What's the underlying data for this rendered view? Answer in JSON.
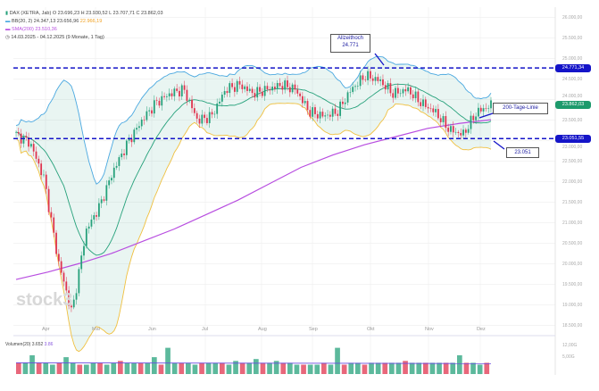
{
  "header": {
    "instrument": "DAX (XETRA, Jab) O 23.696,23 H 23.930,52 L 23.707,71 C 23.862,03",
    "bb": "BB(20, 2) 24.347,13 23.656,96",
    "bb_lower": "22.966,19",
    "sma": "SMA(200) 23.510,36",
    "range": "14.03.2025 - 04.12.2025 (9 Monate, 1 Tag)"
  },
  "volume_label": "Volumen(20) 3.652",
  "volume_value": "3.86",
  "watermark": "stock3",
  "annotations": {
    "ath_title": "Allzeithoch",
    "ath_value": "24.771",
    "sma_label": "200-Tage-Linie",
    "support_value": "23.051"
  },
  "price_tags": {
    "ath": "24.771,34",
    "last": "23.862,03",
    "support": "23.051,55"
  },
  "colors": {
    "up": "#26a17b",
    "down": "#e0344f",
    "bb_upper": "#4aa8e0",
    "bb_mid": "#26a17b",
    "bb_lower": "#f0c040",
    "sma": "#b84ee0",
    "hline": "#1414c8"
  },
  "chart_data": {
    "type": "candlestick",
    "y_ticks": [
      "26.000,00",
      "25.500,00",
      "25.000,00",
      "24.500,00",
      "24.000,00",
      "23.500,00",
      "23.000,00",
      "22.500,00",
      "22.000,00",
      "21.500,00",
      "21.000,00",
      "20.500,00",
      "20.000,00",
      "19.500,00",
      "19.000,00",
      "18.500,00"
    ],
    "y_tick_values": [
      26000,
      25500,
      25000,
      24500,
      24000,
      23500,
      23000,
      22500,
      22000,
      21500,
      21000,
      20500,
      20000,
      19500,
      19000,
      18500
    ],
    "x_ticks": [
      "Apr",
      "Mai",
      "Jun",
      "Jul",
      "Aug",
      "Sep",
      "Okt",
      "Nov",
      "Dez"
    ],
    "close_path": [
      23150,
      22950,
      22080,
      20100,
      18800,
      20800,
      21420,
      22300,
      22950,
      23490,
      23920,
      24140,
      24250,
      23490,
      23600,
      24250,
      24360,
      24150,
      24250,
      24360,
      24250,
      23700,
      23600,
      23700,
      24250,
      24580,
      24470,
      24140,
      24250,
      23920,
      23700,
      23270,
      23150,
      23700,
      23860
    ],
    "sma200_path": [
      19620,
      19800,
      20010,
      20250,
      20550,
      20850,
      21200,
      21550,
      21950,
      22350,
      22650,
      22900,
      23100,
      23300,
      23420,
      23510
    ],
    "hlines": [
      24771,
      23051
    ],
    "volume_ticks": [
      "12,00G",
      "5,00G"
    ],
    "volume": [
      6,
      6,
      10,
      6,
      6,
      5,
      6,
      9,
      6,
      5,
      5,
      6,
      6,
      5,
      6,
      7,
      6,
      6,
      6,
      6,
      9,
      5,
      14,
      6,
      6,
      6,
      5,
      6,
      6,
      6,
      6,
      5,
      7,
      6,
      6,
      8,
      6,
      6,
      7,
      6,
      6,
      5,
      5,
      5,
      5,
      6,
      5,
      14,
      5,
      6,
      6,
      5,
      6,
      6,
      6,
      6,
      6,
      7,
      6,
      6,
      6,
      6,
      6,
      6,
      6,
      10,
      6,
      6,
      5,
      6
    ]
  }
}
